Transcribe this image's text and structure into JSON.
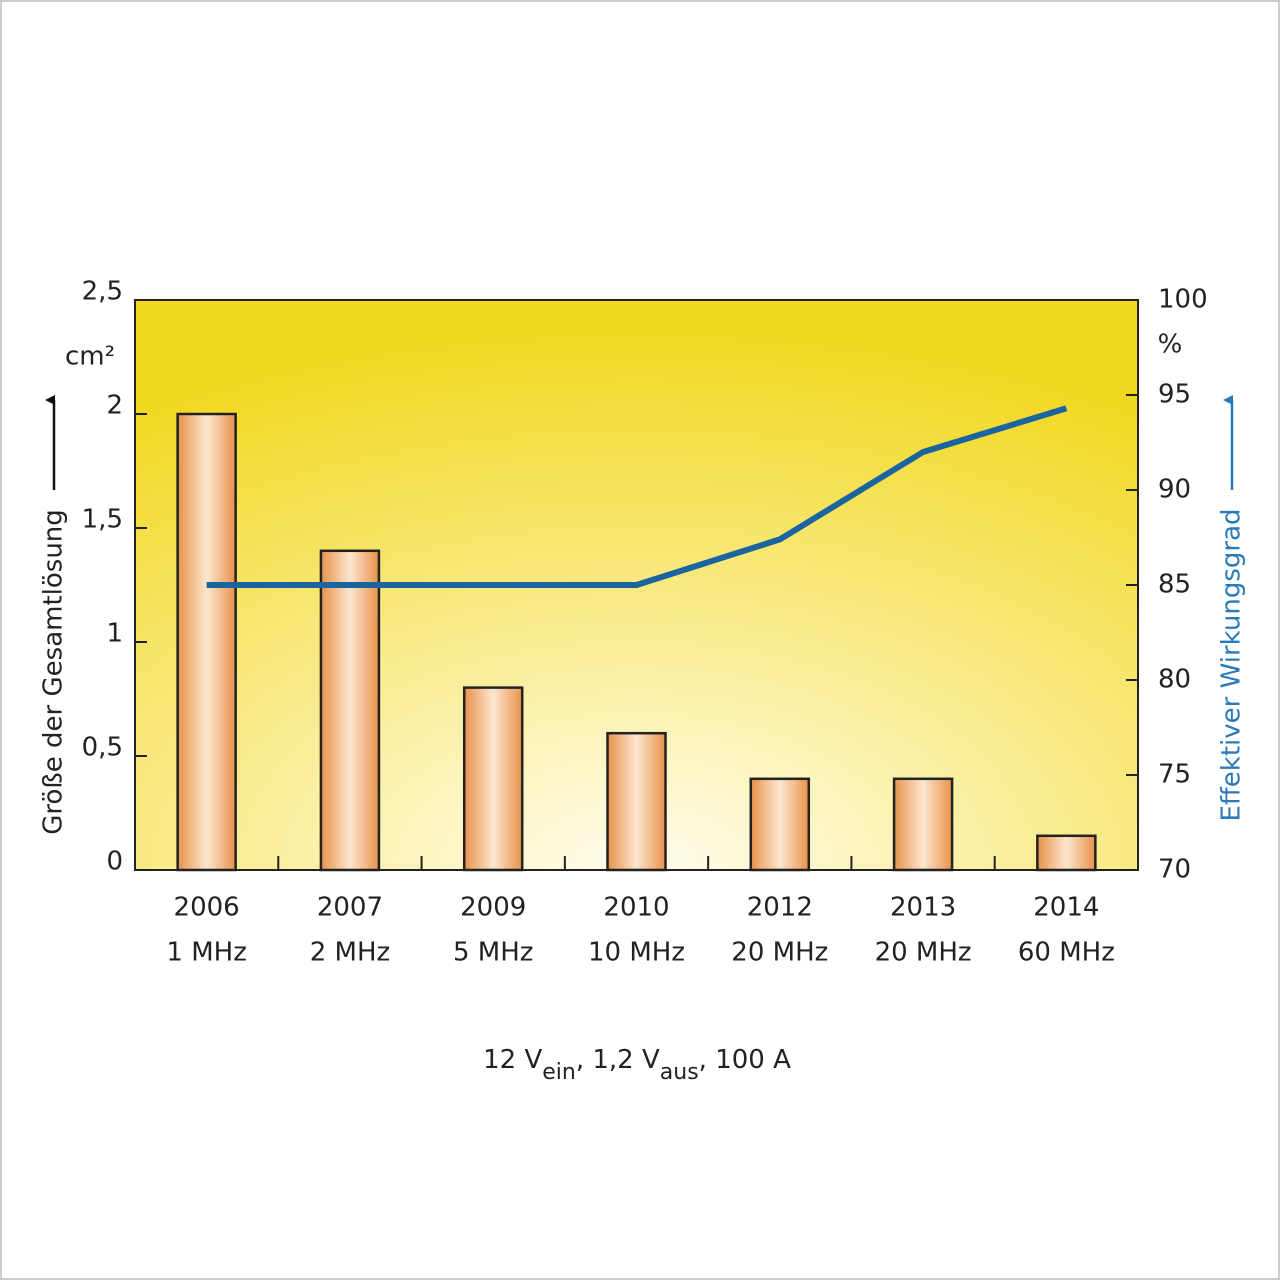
{
  "chart_data": {
    "type": "bar",
    "categories": [
      "2006",
      "2007",
      "2009",
      "2010",
      "2012",
      "2013",
      "2014"
    ],
    "frequencies": [
      "1 MHz",
      "2 MHz",
      "5 MHz",
      "10 MHz",
      "20 MHz",
      "20 MHz",
      "60 MHz"
    ],
    "series": [
      {
        "name": "Größe der Gesamtlösung",
        "type": "bar",
        "color": "#f0a060",
        "values": [
          2.0,
          1.4,
          0.8,
          0.6,
          0.4,
          0.4,
          0.15
        ]
      },
      {
        "name": "Effektiver Wirkungsgrad",
        "type": "line",
        "axis": "y2",
        "color": "#1a64a0",
        "values": [
          85,
          85,
          85,
          85,
          87.4,
          92,
          94.3
        ]
      }
    ],
    "ylim": [
      0,
      2.5
    ],
    "yticks": [
      0,
      {
        "value": 0.5,
        "label": "0,5"
      },
      1,
      {
        "value": 1.5,
        "label": "1,5"
      },
      2,
      {
        "value": 2.5,
        "label": "2,5"
      }
    ],
    "y_unit": "cm²",
    "y2lim": [
      70,
      100
    ],
    "y2ticks": [
      70,
      75,
      80,
      85,
      90,
      95,
      100
    ],
    "y2_unit": "%",
    "note_parts": [
      "12 V",
      "ein",
      ", 1,2 V",
      "aus",
      ", 100 A"
    ]
  }
}
